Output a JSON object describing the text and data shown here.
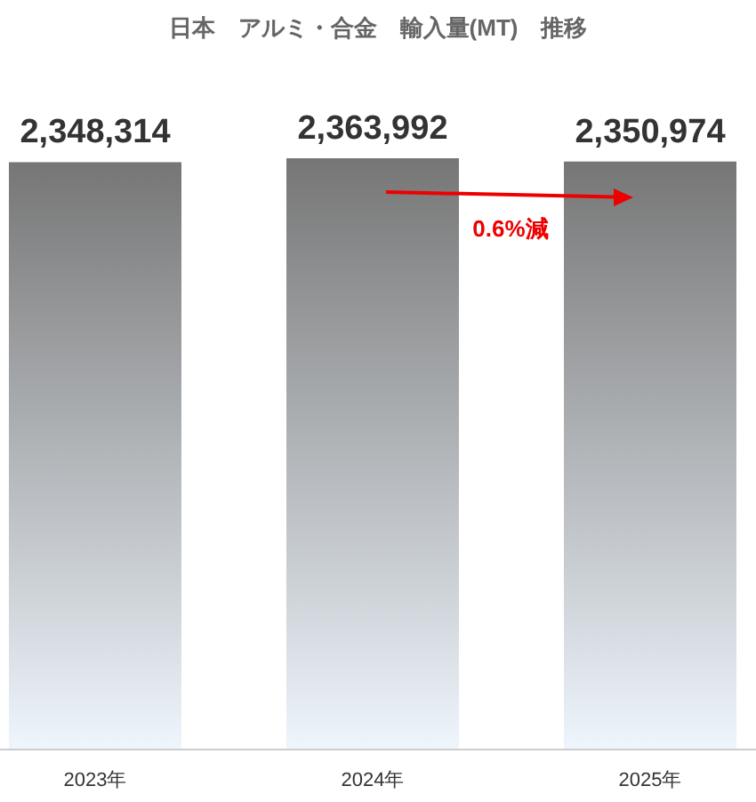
{
  "chart_data": {
    "type": "bar",
    "title": "日本　アルミ・合金　輸入量(MT)　推移",
    "categories": [
      "2023年",
      "2024年",
      "2025年"
    ],
    "values": [
      2348314,
      2363992,
      2350974
    ],
    "color": "#767676",
    "value_labels": [
      "2,348,314",
      "2,363,992",
      "2,350,974"
    ],
    "annotations": [
      "0.6%減"
    ]
  }
}
